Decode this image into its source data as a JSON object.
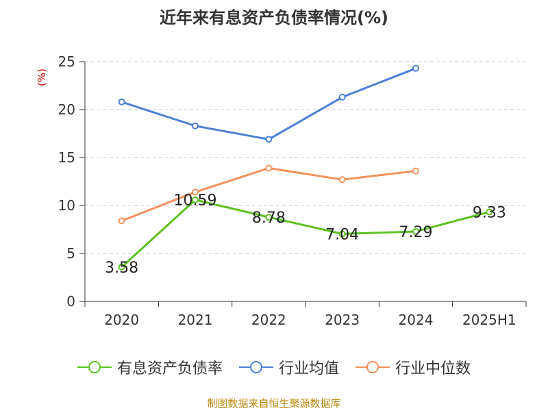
{
  "title": "近年来有息资产负债率情况(%)",
  "unit_label": "(%)",
  "source": "制图数据来自恒生聚源数据库",
  "chart_data": {
    "type": "line",
    "categories": [
      "2020",
      "2021",
      "2022",
      "2023",
      "2024",
      "2025H1"
    ],
    "ylim": [
      0,
      25
    ],
    "yticks": [
      0,
      5,
      10,
      15,
      20,
      25
    ],
    "grid": true,
    "legend_position": "bottom",
    "series": [
      {
        "name": "有息资产负债率",
        "color": "#5cc21e",
        "values": [
          3.58,
          10.59,
          8.78,
          7.04,
          7.29,
          9.33
        ],
        "labels": [
          "3.58",
          "10.59",
          "8.78",
          "7.04",
          "7.29",
          "9.33"
        ]
      },
      {
        "name": "行业均值",
        "color": "#4d7fd6",
        "values": [
          20.8,
          18.3,
          16.9,
          21.3,
          24.3,
          null
        ]
      },
      {
        "name": "行业中位数",
        "color": "#f4915a",
        "values": [
          8.4,
          11.4,
          13.9,
          12.7,
          13.6,
          null
        ]
      }
    ]
  }
}
